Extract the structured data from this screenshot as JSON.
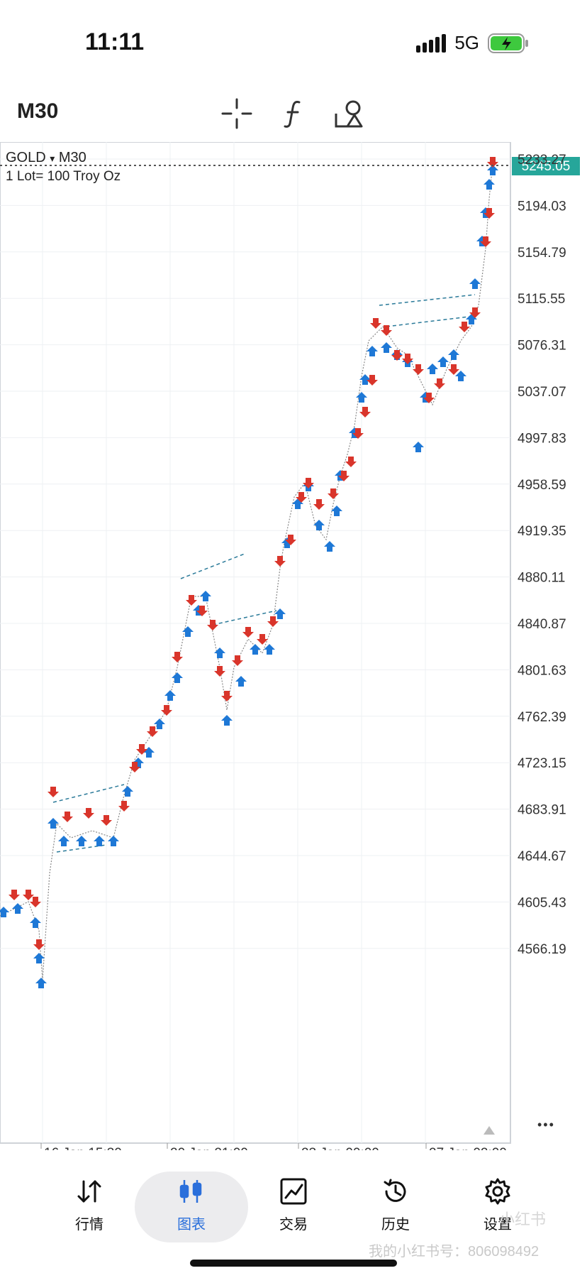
{
  "status": {
    "time": "11:11",
    "network": "5G"
  },
  "toolbar": {
    "timeframe": "M30",
    "tools": [
      "crosshair-icon",
      "indicators-icon",
      "objects-icon"
    ]
  },
  "chart": {
    "symbol": "GOLD",
    "dropdown_glyph": "▾",
    "period": "M30",
    "lot_info": "1 Lot= 100 Troy Oz",
    "current_price": "5245.05",
    "price_levels": [
      "5233.27",
      "5194.03",
      "5154.79",
      "5115.55",
      "5076.31",
      "5037.07",
      "4997.83",
      "4958.59",
      "4919.35",
      "4880.11",
      "4840.87",
      "4801.63",
      "4762.39",
      "4723.15",
      "4683.91",
      "4644.67",
      "4605.43",
      "4566.19"
    ],
    "time_labels": [
      "16 Jan 15:30",
      "20 Jan 21:00",
      "23 Jan 00:00",
      "27 Jan 02:00"
    ],
    "more_glyph": "•••",
    "up_color": "#1e78d6",
    "down_color": "#d9352b",
    "price_tag_color": "#26a69a"
  },
  "nav": {
    "items": [
      {
        "label": "行情",
        "icon": "quotes-icon"
      },
      {
        "label": "图表",
        "icon": "chart-icon"
      },
      {
        "label": "交易",
        "icon": "trade-icon"
      },
      {
        "label": "历史",
        "icon": "history-icon"
      },
      {
        "label": "设置",
        "icon": "settings-icon"
      }
    ]
  },
  "watermark": {
    "text": "我的小红书号：806098492",
    "badge": "小红书"
  }
}
